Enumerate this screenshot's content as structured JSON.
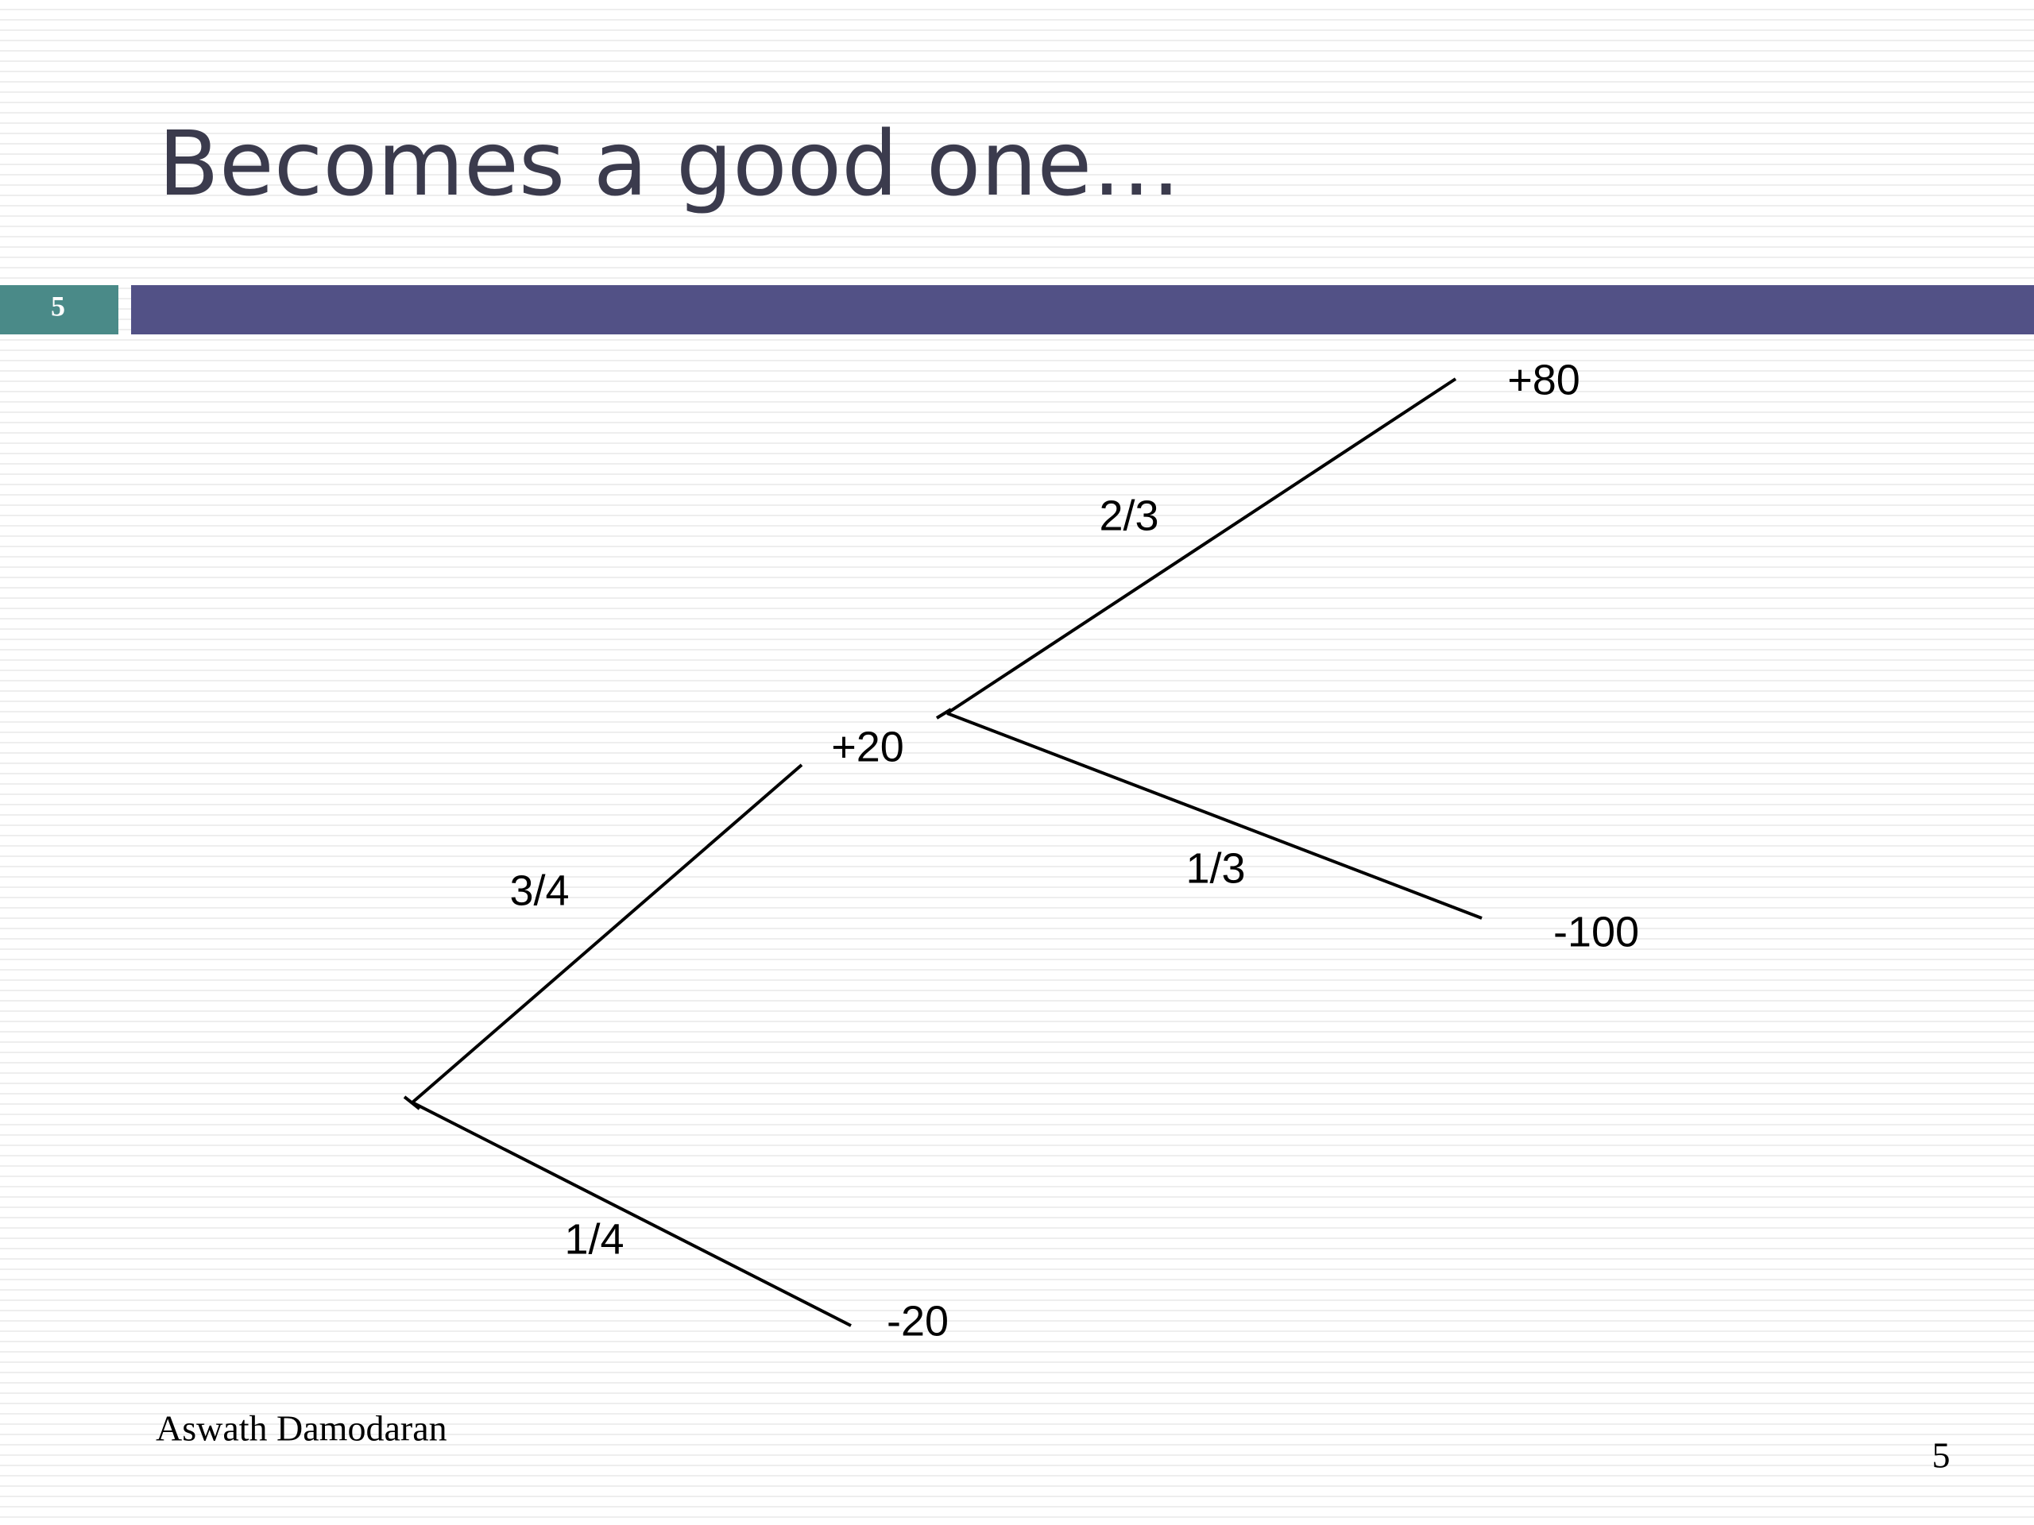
{
  "header": {
    "title": "Becomes a good one…",
    "slide_badge": "5"
  },
  "tree": {
    "nodes": [
      {
        "label": "+20"
      },
      {
        "label": "-20"
      },
      {
        "label": "+80"
      },
      {
        "label": "-100"
      }
    ],
    "edges": [
      {
        "label": "3/4"
      },
      {
        "label": "1/4"
      },
      {
        "label": "2/3"
      },
      {
        "label": "1/3"
      }
    ]
  },
  "footer": {
    "author": "Aswath Damodaran",
    "page_number": "5"
  }
}
